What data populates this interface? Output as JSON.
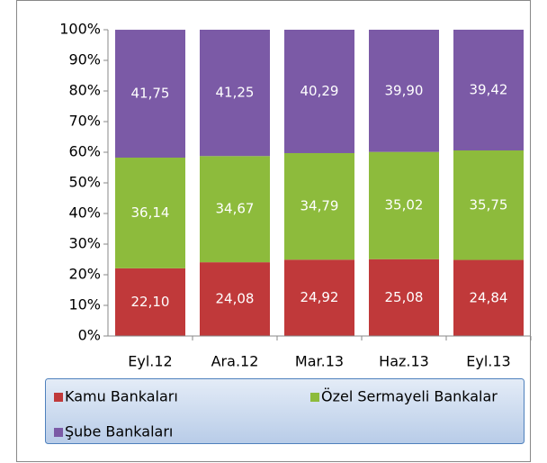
{
  "chart_data": {
    "type": "stacked_bar",
    "categories": [
      "Eyl.12",
      "Ara.12",
      "Mar.13",
      "Haz.13",
      "Eyl.13"
    ],
    "series": [
      {
        "name": "Kamu Bankaları",
        "color": "#c0393a",
        "values": [
          22.1,
          24.08,
          24.92,
          25.08,
          24.84
        ],
        "value_labels": [
          "22,10",
          "24,08",
          "24,92",
          "25,08",
          "24,84"
        ]
      },
      {
        "name": "Özel Sermayeli Bankalar",
        "color": "#8dbb3c",
        "values": [
          36.14,
          34.67,
          34.79,
          35.02,
          35.75
        ],
        "value_labels": [
          "36,14",
          "34,67",
          "34,79",
          "35,02",
          "35,75"
        ]
      },
      {
        "name": "Şube Bankaları",
        "color": "#7b5aa6",
        "values": [
          41.75,
          41.25,
          40.29,
          39.9,
          39.42
        ],
        "value_labels": [
          "41,75",
          "41,25",
          "40,29",
          "39,90",
          "39,42"
        ]
      }
    ],
    "ylim": [
      0,
      100
    ],
    "yticks": [
      {
        "value": 0,
        "label": "0%"
      },
      {
        "value": 10,
        "label": "10%"
      },
      {
        "value": 20,
        "label": "20%"
      },
      {
        "value": 30,
        "label": "30%"
      },
      {
        "value": 40,
        "label": "40%"
      },
      {
        "value": 50,
        "label": "50%"
      },
      {
        "value": 60,
        "label": "60%"
      },
      {
        "value": 70,
        "label": "70%"
      },
      {
        "value": 80,
        "label": "80%"
      },
      {
        "value": 90,
        "label": "90%"
      },
      {
        "value": 100,
        "label": "100%"
      }
    ],
    "legend": "bottom"
  }
}
